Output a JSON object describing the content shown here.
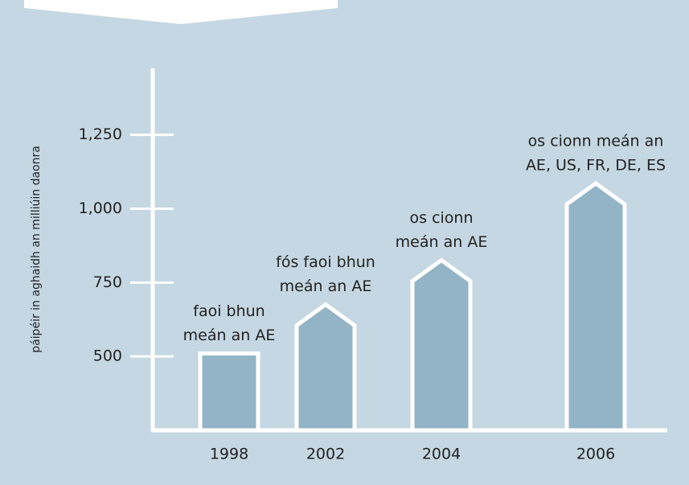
{
  "chart_data": {
    "type": "bar",
    "y_label": "páipéir in aghaidh an milliúin daonra",
    "categories": [
      "1998",
      "2002",
      "2004",
      "2006"
    ],
    "values": [
      510,
      605,
      755,
      1015
    ],
    "annotations": [
      [
        "faoi bhun",
        "meán an AE"
      ],
      [
        "fós faoi bhun",
        "meán an AE"
      ],
      [
        "os cionn",
        "meán an AE"
      ],
      [
        "os cionn meán an",
        "AE, US, FR, DE, ES"
      ]
    ],
    "color": "#93b4c6",
    "ylim": [
      250,
      1475
    ],
    "yticks": [
      500,
      750,
      {
        "value": 1000,
        "label": "1,000"
      },
      {
        "value": 1250,
        "label": "1,250"
      }
    ]
  }
}
